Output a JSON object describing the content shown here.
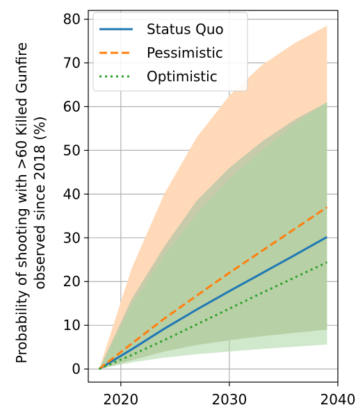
{
  "chart_data": {
    "type": "line",
    "title": "",
    "xlabel": "",
    "ylabel_line1": "Probability of shooting with >60 Killed Gunfire",
    "ylabel_line2": "observed since 2018 (%)",
    "xlim": [
      2017,
      2040
    ],
    "ylim": [
      -3,
      82
    ],
    "xticks": [
      2020,
      2030,
      2040
    ],
    "yticks": [
      0,
      10,
      20,
      30,
      40,
      50,
      60,
      70,
      80
    ],
    "grid": true,
    "legend_placement": "top-left",
    "x": [
      2018,
      2021,
      2024,
      2027,
      2030,
      2033,
      2036,
      2039
    ],
    "series": [
      {
        "name": "Status Quo",
        "style": "solid",
        "color": "#1f77b4",
        "values": [
          0,
          4.5,
          9.2,
          13.6,
          17.8,
          21.9,
          26.0,
          30.2
        ],
        "band_lower": [
          0,
          2.0,
          4.0,
          5.5,
          6.6,
          7.5,
          8.3,
          9.0
        ],
        "band_upper": [
          0,
          16.0,
          28.0,
          38.5,
          46.0,
          52.0,
          57.0,
          61.0
        ]
      },
      {
        "name": "Pessimistic",
        "style": "dashed",
        "color": "#ff7f0e",
        "values": [
          0,
          5.8,
          11.5,
          16.8,
          22.0,
          27.0,
          32.0,
          37.0
        ],
        "band_lower": [
          0,
          2.0,
          4.0,
          5.5,
          6.6,
          7.5,
          8.3,
          9.0
        ],
        "band_upper": [
          0,
          23.0,
          40.0,
          53.0,
          62.5,
          69.5,
          74.5,
          78.5
        ]
      },
      {
        "name": "Optimistic",
        "style": "dotted",
        "color": "#2ca02c",
        "values": [
          0,
          3.2,
          6.6,
          10.2,
          13.8,
          17.4,
          20.9,
          24.4
        ],
        "band_lower": [
          0,
          1.5,
          2.6,
          3.4,
          4.0,
          4.6,
          5.1,
          5.6
        ],
        "band_upper": [
          0,
          14.5,
          26.0,
          35.5,
          43.5,
          50.0,
          56.0,
          61.0
        ]
      }
    ],
    "band_colors": {
      "pessimistic": "#ffd9b8",
      "status_quo": "#9bbfa0",
      "optimistic": "#a9d6a0"
    }
  }
}
